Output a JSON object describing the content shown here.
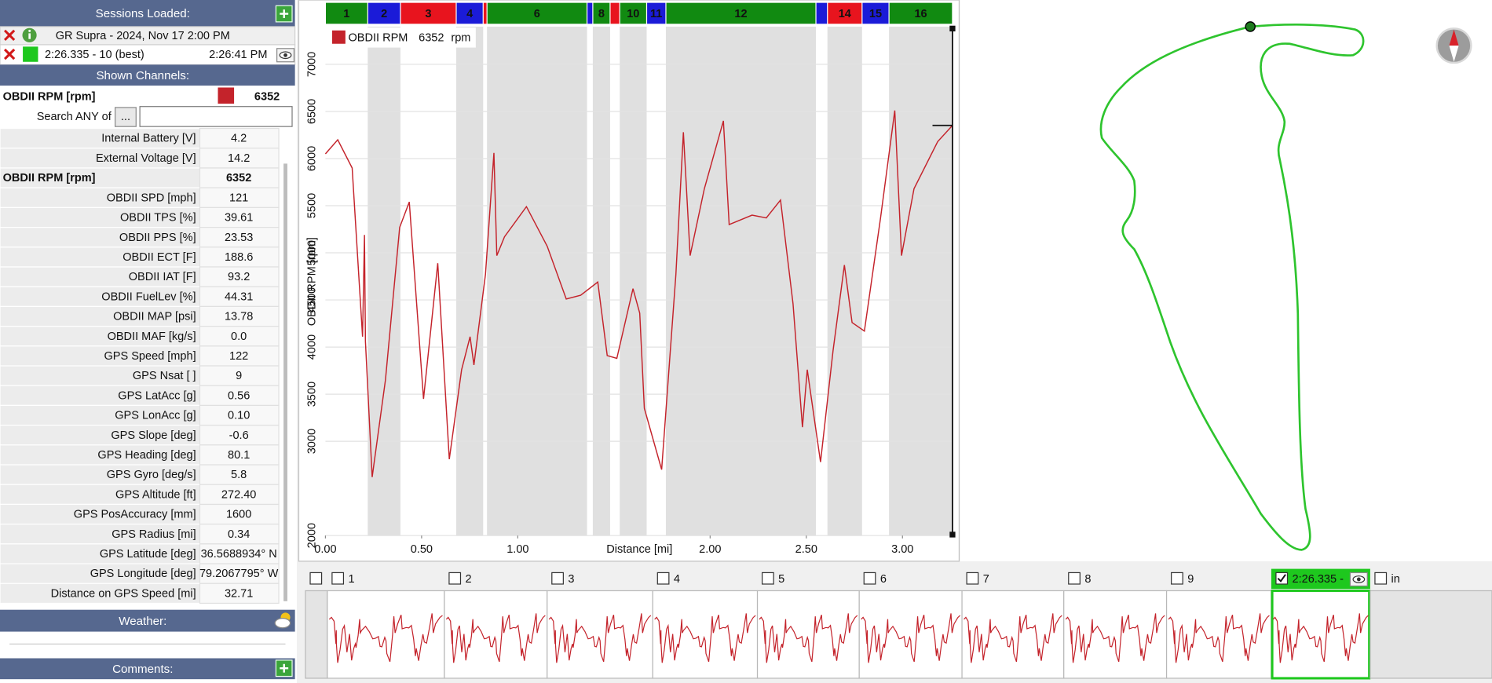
{
  "sessions": {
    "title": "Sessions Loaded:",
    "session": "GR Supra - 2024, Nov 17 2:00 PM",
    "lap": "2:26.335 - 10 (best)",
    "lap_time": "2:26:41 PM"
  },
  "channels": {
    "title": "Shown Channels:",
    "selected": {
      "name": "OBDII RPM [rpm]",
      "value": "6352"
    },
    "search_label": "Search ANY of",
    "search_button": "...",
    "rows": [
      {
        "name": "Internal Battery [V]",
        "value": "4.2"
      },
      {
        "name": "External Voltage [V]",
        "value": "14.2"
      },
      {
        "name": "OBDII RPM [rpm]",
        "value": "6352",
        "bold": true
      },
      {
        "name": "OBDII SPD [mph]",
        "value": "121"
      },
      {
        "name": "OBDII TPS [%]",
        "value": "39.61"
      },
      {
        "name": "OBDII PPS [%]",
        "value": "23.53"
      },
      {
        "name": "OBDII ECT [F]",
        "value": "188.6"
      },
      {
        "name": "OBDII IAT [F]",
        "value": "93.2"
      },
      {
        "name": "OBDII FuelLev [%]",
        "value": "44.31"
      },
      {
        "name": "OBDII MAP [psi]",
        "value": "13.78"
      },
      {
        "name": "OBDII MAF [kg/s]",
        "value": "0.0"
      },
      {
        "name": "GPS Speed [mph]",
        "value": "122"
      },
      {
        "name": "GPS Nsat [ ]",
        "value": "9"
      },
      {
        "name": "GPS LatAcc [g]",
        "value": "0.56"
      },
      {
        "name": "GPS LonAcc [g]",
        "value": "0.10"
      },
      {
        "name": "GPS Slope [deg]",
        "value": "-0.6"
      },
      {
        "name": "GPS Heading [deg]",
        "value": "80.1"
      },
      {
        "name": "GPS Gyro [deg/s]",
        "value": "5.8"
      },
      {
        "name": "GPS Altitude [ft]",
        "value": "272.40"
      },
      {
        "name": "GPS PosAccuracy [mm]",
        "value": "1600"
      },
      {
        "name": "GPS Radius [mi]",
        "value": "0.34"
      },
      {
        "name": "GPS Latitude [deg]",
        "value": "36.5688934° N"
      },
      {
        "name": "GPS Longitude [deg]",
        "value": "79.2067795° W"
      },
      {
        "name": "Distance on GPS Speed [mi]",
        "value": "32.71"
      }
    ]
  },
  "weather": {
    "title": "Weather:"
  },
  "comments": {
    "title": "Comments:"
  },
  "chart_data": {
    "type": "line",
    "xlabel": "Distance [mi]",
    "ylabel": "OBDII RPM [rpm]",
    "xlim": [
      0,
      3.26
    ],
    "ylim": [
      2000,
      7400
    ],
    "xticks": [
      {
        "value": 0,
        "label": "0.00"
      },
      {
        "value": 0.5,
        "label": "0.50"
      },
      {
        "value": 1,
        "label": "1.00"
      },
      {
        "value": 2,
        "label": "2.00"
      },
      {
        "value": 2.5,
        "label": "2.50"
      },
      {
        "value": 3,
        "label": "3.00"
      }
    ],
    "yticks": [
      2000,
      3000,
      3500,
      4000,
      4500,
      5000,
      5500,
      6000,
      6500,
      7000
    ],
    "grid": true,
    "x": [
      0,
      0.064,
      0.139,
      0.193,
      0.203,
      0.208,
      0.243,
      0.312,
      0.386,
      0.436,
      0.51,
      0.584,
      0.644,
      0.708,
      0.752,
      0.772,
      0.832,
      0.876,
      0.891,
      0.931,
      1.045,
      1.153,
      1.252,
      1.327,
      1.416,
      1.465,
      1.515,
      1.599,
      1.634,
      1.658,
      1.748,
      1.822,
      1.861,
      1.896,
      1.97,
      2.069,
      2.099,
      2.218,
      2.292,
      2.366,
      2.431,
      2.48,
      2.505,
      2.574,
      2.639,
      2.698,
      2.738,
      2.802,
      2.886,
      2.96,
      2.995,
      3.06,
      3.183,
      3.26
    ],
    "series": [
      {
        "name": "OBDII RPM",
        "unit": "rpm",
        "color": "#c4232b",
        "values": [
          6050,
          6200,
          5900,
          4110,
          5190,
          4060,
          2620,
          3650,
          5270,
          5540,
          3450,
          4890,
          2810,
          3760,
          4110,
          3810,
          4770,
          6060,
          4970,
          5170,
          5490,
          5070,
          4510,
          4550,
          4690,
          3910,
          3880,
          4620,
          4360,
          3350,
          2700,
          4770,
          6280,
          4970,
          5680,
          6400,
          5300,
          5400,
          5370,
          5560,
          4460,
          3150,
          3760,
          2780,
          3960,
          4870,
          4260,
          4170,
          5370,
          6510,
          4970,
          5680,
          6180,
          6352
        ]
      }
    ],
    "sectors": [
      {
        "label": "1",
        "start": 0,
        "end": 0.22,
        "color": "#118a11"
      },
      {
        "label": "2",
        "start": 0.22,
        "end": 0.39,
        "color": "#1b1bd8"
      },
      {
        "label": "3",
        "start": 0.39,
        "end": 0.68,
        "color": "#e8141e"
      },
      {
        "label": "4",
        "start": 0.68,
        "end": 0.82,
        "color": "#1b1bd8"
      },
      {
        "label": null,
        "start": 0.82,
        "end": 0.84,
        "color": "#e8141e"
      },
      {
        "label": "6",
        "start": 0.84,
        "end": 1.36,
        "color": "#118a11"
      },
      {
        "label": null,
        "start": 1.36,
        "end": 1.39,
        "color": "#1b1bd8"
      },
      {
        "label": "8",
        "start": 1.39,
        "end": 1.48,
        "color": "#118a11"
      },
      {
        "label": null,
        "start": 1.48,
        "end": 1.53,
        "color": "#e8141e"
      },
      {
        "label": "10",
        "start": 1.53,
        "end": 1.67,
        "color": "#118a11"
      },
      {
        "label": "11",
        "start": 1.67,
        "end": 1.77,
        "color": "#1b1bd8"
      },
      {
        "label": "12",
        "start": 1.77,
        "end": 2.55,
        "color": "#118a11"
      },
      {
        "label": null,
        "start": 2.55,
        "end": 2.61,
        "color": "#1b1bd8"
      },
      {
        "label": "14",
        "start": 2.61,
        "end": 2.79,
        "color": "#e8141e"
      },
      {
        "label": "15",
        "start": 2.79,
        "end": 2.93,
        "color": "#1b1bd8"
      },
      {
        "label": "16",
        "start": 2.93,
        "end": 3.26,
        "color": "#118a11"
      }
    ]
  },
  "laps": [
    {
      "label": null
    },
    {
      "label": "1"
    },
    {
      "label": "2"
    },
    {
      "label": "3"
    },
    {
      "label": "4"
    },
    {
      "label": "5"
    },
    {
      "label": "6"
    },
    {
      "label": "7"
    },
    {
      "label": "8"
    },
    {
      "label": "9"
    },
    {
      "label": "2:26.335 -",
      "selected": true
    },
    {
      "label": "in"
    }
  ]
}
